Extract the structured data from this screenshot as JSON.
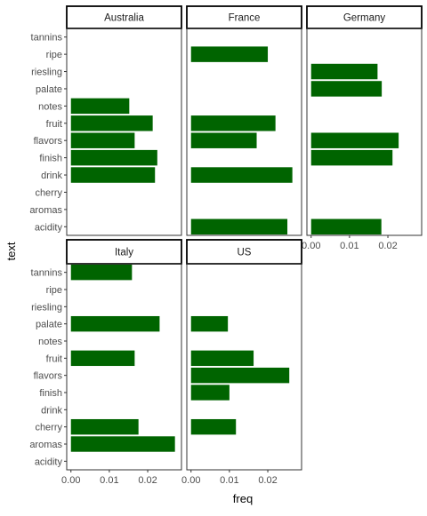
{
  "chart_data": {
    "type": "bar",
    "orientation": "horizontal",
    "xlabel": "freq",
    "ylabel": "text",
    "xlim": [
      -0.0011,
      0.0288
    ],
    "xticks": [
      0.0,
      0.01,
      0.02
    ],
    "xtick_labels": [
      "0.00",
      "0.01",
      "0.02"
    ],
    "bar_color": "#006400",
    "grid": false,
    "categories": [
      "tannins",
      "ripe",
      "riesling",
      "palate",
      "notes",
      "fruit",
      "flavors",
      "finish",
      "drink",
      "cherry",
      "aromas",
      "acidity"
    ],
    "facets": [
      {
        "name": "Australia",
        "values": {
          "notes": 0.0152,
          "fruit": 0.0213,
          "flavors": 0.0166,
          "finish": 0.0225,
          "drink": 0.0219
        }
      },
      {
        "name": "France",
        "values": {
          "ripe": 0.02,
          "fruit": 0.022,
          "flavors": 0.0171,
          "drink": 0.0264,
          "acidity": 0.0251
        }
      },
      {
        "name": "Germany",
        "values": {
          "riesling": 0.0173,
          "palate": 0.0184,
          "flavors": 0.0228,
          "finish": 0.0212,
          "acidity": 0.0183
        }
      },
      {
        "name": "Italy",
        "values": {
          "tannins": 0.0159,
          "palate": 0.0231,
          "fruit": 0.0166,
          "cherry": 0.0176,
          "aromas": 0.0271
        }
      },
      {
        "name": "US",
        "values": {
          "palate": 0.0096,
          "fruit": 0.0163,
          "flavors": 0.0256,
          "finish": 0.01,
          "cherry": 0.0117
        }
      }
    ]
  }
}
